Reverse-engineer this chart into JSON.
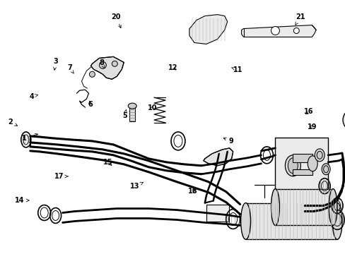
{
  "bg_color": "#ffffff",
  "line_color": "#000000",
  "fig_width": 4.89,
  "fig_height": 3.6,
  "dpi": 100,
  "labels": {
    "1": [
      0.065,
      0.555,
      0.09,
      0.52
    ],
    "2": [
      0.028,
      0.5,
      0.04,
      0.475
    ],
    "3": [
      0.155,
      0.255,
      0.175,
      0.3
    ],
    "4": [
      0.095,
      0.385,
      0.115,
      0.37
    ],
    "5": [
      0.355,
      0.46,
      0.355,
      0.435
    ],
    "6": [
      0.265,
      0.41,
      0.27,
      0.39
    ],
    "7": [
      0.205,
      0.275,
      0.215,
      0.295
    ],
    "8": [
      0.295,
      0.255,
      0.305,
      0.275
    ],
    "9": [
      0.665,
      0.56,
      0.63,
      0.54
    ],
    "10": [
      0.44,
      0.43,
      0.445,
      0.415
    ],
    "11": [
      0.685,
      0.285,
      0.665,
      0.275
    ],
    "12": [
      0.5,
      0.27,
      0.515,
      0.285
    ],
    "13": [
      0.39,
      0.73,
      0.41,
      0.715
    ],
    "14": [
      0.06,
      0.79,
      0.09,
      0.785
    ],
    "15": [
      0.315,
      0.645,
      0.33,
      0.66
    ],
    "16": [
      0.89,
      0.44,
      0.88,
      0.455
    ],
    "17": [
      0.175,
      0.69,
      0.205,
      0.695
    ],
    "18": [
      0.565,
      0.755,
      0.575,
      0.735
    ],
    "19": [
      0.9,
      0.5,
      0.89,
      0.495
    ],
    "20": [
      0.335,
      0.07,
      0.345,
      0.12
    ],
    "21": [
      0.865,
      0.07,
      0.845,
      0.105
    ]
  }
}
